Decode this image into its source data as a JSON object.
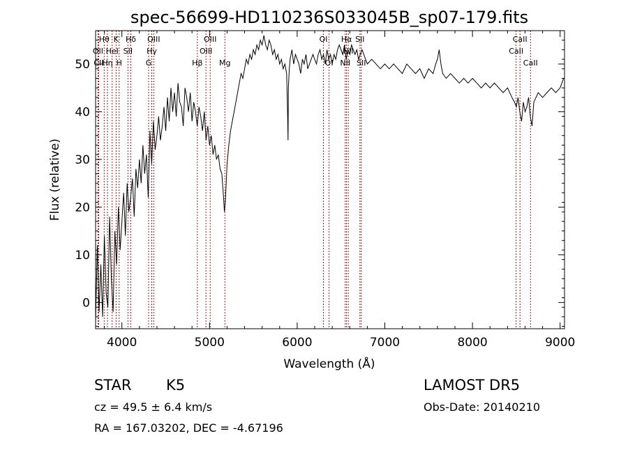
{
  "chart_data": {
    "type": "line",
    "title": "spec-56699-HD110236S033045B_sp07-179.fits",
    "xlabel": "Wavelength (Å)",
    "ylabel": "Flux (relative)",
    "xlim": [
      3700,
      9050
    ],
    "ylim": [
      -5.5,
      57
    ],
    "xticks": [
      4000,
      5000,
      6000,
      7000,
      8000,
      9000
    ],
    "yticks": [
      0,
      10,
      20,
      30,
      40,
      50
    ],
    "grid": false,
    "legend": "none",
    "series": [
      {
        "x": [
          3700,
          3720,
          3740,
          3760,
          3780,
          3800,
          3820,
          3840,
          3860,
          3880,
          3900,
          3920,
          3940,
          3960,
          3980,
          4000,
          4020,
          4040,
          4060,
          4080,
          4100,
          4120,
          4140,
          4160,
          4180,
          4200,
          4220,
          4240,
          4260,
          4280,
          4300,
          4320,
          4340,
          4360,
          4380,
          4400,
          4420,
          4440,
          4460,
          4480,
          4500,
          4520,
          4540,
          4560,
          4580,
          4600,
          4620,
          4640,
          4660,
          4680,
          4700,
          4720,
          4740,
          4760,
          4780,
          4800,
          4820,
          4840,
          4860,
          4880,
          4900,
          4920,
          4940,
          4960,
          4980,
          5000,
          5020,
          5040,
          5060,
          5080,
          5100,
          5120,
          5140,
          5160,
          5170,
          5180,
          5190,
          5200,
          5220,
          5240,
          5260,
          5280,
          5300,
          5320,
          5340,
          5360,
          5380,
          5400,
          5420,
          5440,
          5460,
          5480,
          5500,
          5520,
          5540,
          5560,
          5580,
          5600,
          5620,
          5640,
          5660,
          5680,
          5700,
          5720,
          5740,
          5760,
          5780,
          5800,
          5820,
          5840,
          5860,
          5880,
          5890,
          5896,
          5900,
          5910,
          5920,
          5940,
          5960,
          5980,
          6000,
          6020,
          6040,
          6060,
          6080,
          6100,
          6120,
          6140,
          6160,
          6180,
          6200,
          6220,
          6240,
          6260,
          6280,
          6300,
          6320,
          6340,
          6360,
          6380,
          6400,
          6420,
          6440,
          6460,
          6480,
          6500,
          6520,
          6540,
          6560,
          6580,
          6600,
          6620,
          6640,
          6660,
          6680,
          6700,
          6720,
          6740,
          6760,
          6780,
          6800,
          6850,
          6900,
          6950,
          7000,
          7050,
          7100,
          7150,
          7200,
          7250,
          7300,
          7350,
          7400,
          7450,
          7500,
          7550,
          7580,
          7600,
          7620,
          7640,
          7660,
          7700,
          7750,
          7800,
          7850,
          7900,
          7950,
          8000,
          8050,
          8100,
          8150,
          8200,
          8250,
          8300,
          8350,
          8400,
          8450,
          8480,
          8500,
          8520,
          8540,
          8560,
          8580,
          8600,
          8620,
          8640,
          8660,
          8680,
          8700,
          8750,
          8800,
          8850,
          8900,
          8950,
          9000,
          9020,
          9040
        ],
        "y": [
          -4,
          12,
          -2,
          8,
          -3,
          14,
          2,
          -1,
          18,
          5,
          -2,
          15,
          8,
          20,
          11,
          17,
          23,
          14,
          25,
          19,
          22,
          26,
          18,
          28,
          24,
          30,
          25,
          33,
          27,
          31,
          22,
          36,
          29,
          38,
          32,
          35,
          39,
          34,
          37,
          41,
          36,
          43,
          38,
          45,
          40,
          44,
          39,
          46,
          42,
          41,
          37,
          45,
          43,
          40,
          44,
          38,
          42,
          40,
          37,
          41,
          39,
          36,
          40,
          34,
          37,
          33,
          35,
          31,
          33,
          30,
          31,
          28,
          27,
          22,
          19,
          21,
          25,
          29,
          33,
          36,
          38,
          40,
          42,
          44,
          46,
          48,
          47,
          49,
          51,
          50,
          52,
          51,
          53,
          52,
          54,
          53,
          55,
          54,
          56,
          54,
          53,
          55,
          54,
          52,
          53,
          51,
          52,
          50,
          51,
          49,
          50,
          48,
          40,
          34,
          45,
          49,
          51,
          53,
          50,
          52,
          51,
          50,
          48,
          51,
          50,
          52,
          49,
          50,
          51,
          52,
          51,
          50,
          52,
          53,
          51,
          52,
          50,
          53,
          51,
          52,
          50,
          52,
          51,
          53,
          54,
          53,
          52,
          54,
          51,
          53,
          52,
          54,
          53,
          52,
          53,
          51,
          52,
          53,
          52,
          51,
          50,
          51,
          50,
          49,
          50,
          49,
          50,
          49,
          48,
          50,
          49,
          48,
          49,
          47,
          49,
          48,
          50,
          51,
          53,
          50,
          48,
          47,
          48,
          47,
          46,
          47,
          46,
          47,
          46,
          45,
          46,
          45,
          46,
          45,
          44,
          45,
          43,
          42,
          41,
          43,
          40,
          38,
          42,
          40,
          41,
          43,
          39,
          37,
          42,
          44,
          43,
          44,
          45,
          44,
          45,
          46,
          47
        ]
      }
    ],
    "line_markers": [
      {
        "label": "Hθ",
        "x": 3798,
        "row": 0
      },
      {
        "label": "OII",
        "x": 3727,
        "row": 1
      },
      {
        "label": "CII",
        "x": 3735,
        "row": 2
      },
      {
        "label": "Hη",
        "x": 3835,
        "row": 2
      },
      {
        "label": "HeI",
        "x": 3889,
        "row": 1
      },
      {
        "label": "K",
        "x": 3934,
        "row": 0
      },
      {
        "label": "H",
        "x": 3969,
        "row": 2
      },
      {
        "label": "SII",
        "x": 4069,
        "row": 1
      },
      {
        "label": "Hδ",
        "x": 4102,
        "row": 0
      },
      {
        "label": "G",
        "x": 4305,
        "row": 2
      },
      {
        "label": "Hγ",
        "x": 4341,
        "row": 1
      },
      {
        "label": "OIII",
        "x": 4363,
        "row": 0
      },
      {
        "label": "Hβ",
        "x": 4861,
        "row": 2
      },
      {
        "label": "OIII",
        "x": 4959,
        "row": 1
      },
      {
        "label": "OIII",
        "x": 5007,
        "row": 0
      },
      {
        "label": "Mg",
        "x": 5175,
        "row": 2
      },
      {
        "label": "OI",
        "x": 6300,
        "row": 0
      },
      {
        "label": "OI",
        "x": 6364,
        "row": 2
      },
      {
        "label": "NII",
        "x": 6548,
        "row": 2
      },
      {
        "label": "Hα",
        "x": 6563,
        "row": 0
      },
      {
        "label": "NII",
        "x": 6583,
        "row": 1
      },
      {
        "label": "SII",
        "x": 6716,
        "row": 0
      },
      {
        "label": "SII",
        "x": 6731,
        "row": 2
      },
      {
        "label": "CaII",
        "x": 8498,
        "row": 1
      },
      {
        "label": "CaII",
        "x": 8542,
        "row": 0
      },
      {
        "label": "CaII",
        "x": 8662,
        "row": 2
      }
    ]
  },
  "info": {
    "class": "STAR",
    "subclass": "K5",
    "survey": "LAMOST DR5",
    "cz": "cz = 49.5 ± 6.4 km/s",
    "obs_date": "Obs-Date: 20140210",
    "radec": "RA = 167.03202, DEC =  -4.67196"
  }
}
